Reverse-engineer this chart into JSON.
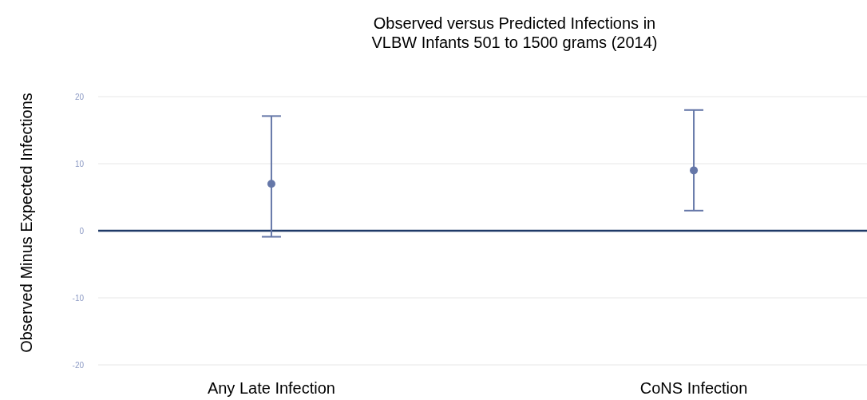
{
  "chart_data": {
    "type": "scatter",
    "title": "Observed versus Predicted Infections in\nVLBW Infants 501 to 1500 grams (2014)",
    "ylabel": "Observed Minus Expected Infections",
    "categories": [
      "Any Late Infection",
      "CoNS Infection"
    ],
    "values": [
      7.0,
      9.0
    ],
    "errors": [
      [
        -0.9,
        17.1
      ],
      [
        3.0,
        18.0
      ]
    ],
    "color": "#6577a8",
    "marker": "circle",
    "ylim": [
      -20,
      20
    ],
    "yticks": [
      -20,
      -10,
      0,
      10,
      20
    ],
    "grid": "y",
    "ref_lines": [
      {
        "axis": "y",
        "value": 0,
        "color": "#1f3a68"
      }
    ]
  }
}
